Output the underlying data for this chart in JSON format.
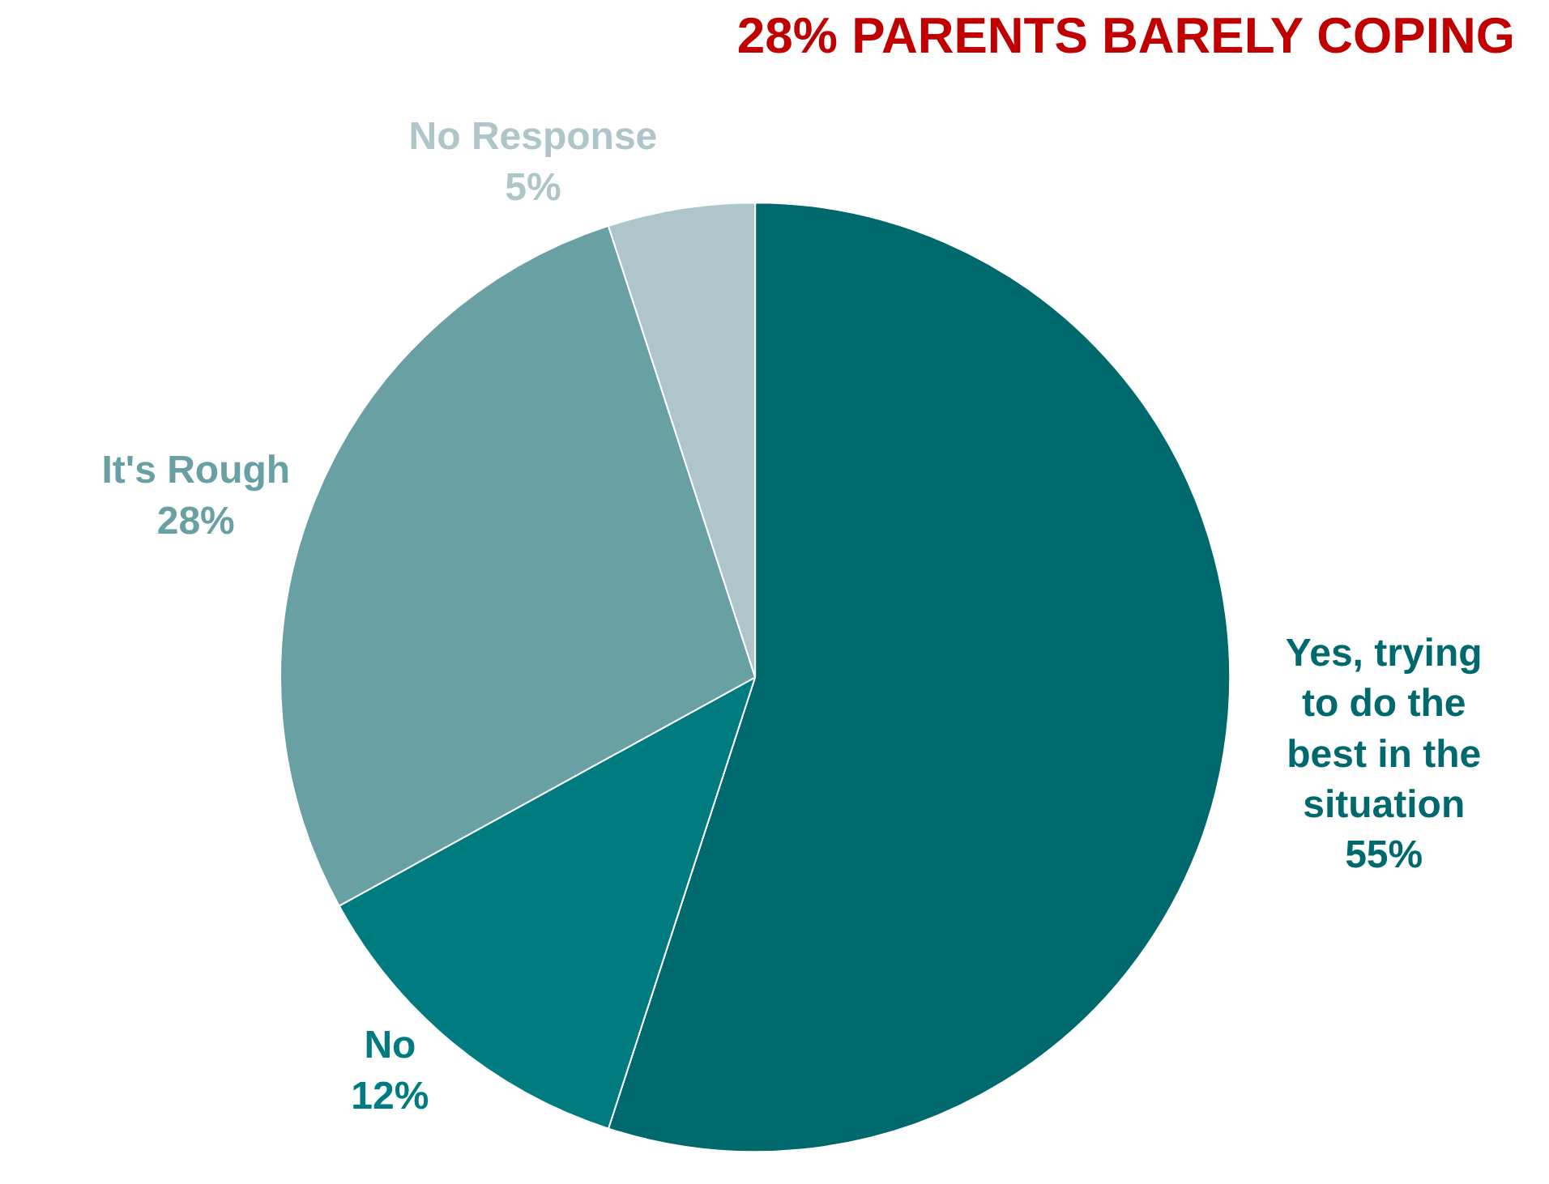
{
  "chart_data": {
    "type": "pie",
    "title": "28% PARENTS BARELY COPING",
    "categories": [
      "Yes, trying to do the best in the situation",
      "No",
      "It's Rough",
      "No Response"
    ],
    "values": [
      55,
      12,
      28,
      5
    ],
    "value_labels": [
      "55%",
      "12%",
      "28%",
      "5%"
    ],
    "colors": [
      "#00696d",
      "#007b80",
      "#68a0a4",
      "#aec6ca"
    ],
    "legend": false
  }
}
